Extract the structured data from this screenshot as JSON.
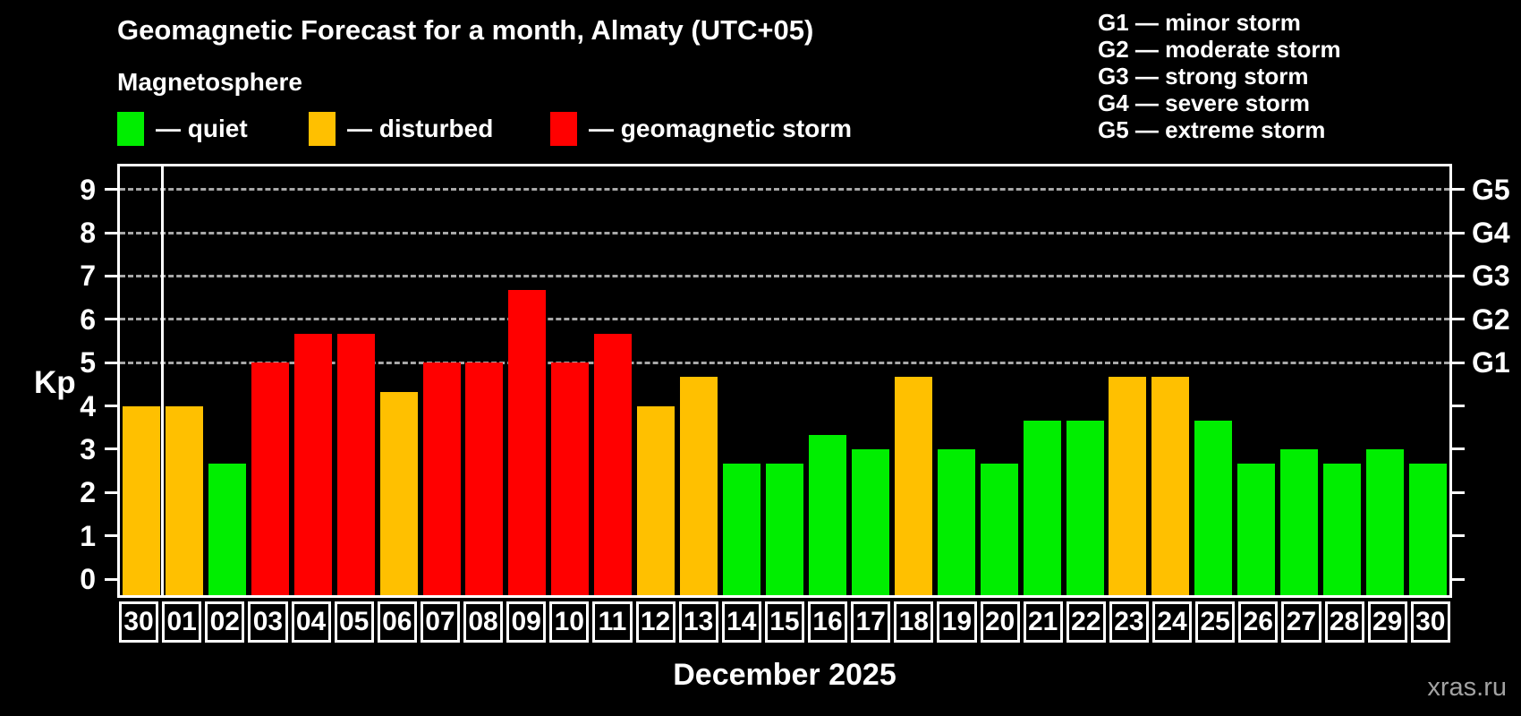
{
  "header": {
    "title": "Geomagnetic Forecast for a month, Almaty (UTC+05)",
    "subtitle": "Magnetosphere"
  },
  "legend": {
    "items": [
      {
        "key": "quiet",
        "label": "— quiet",
        "color": "#00ee00"
      },
      {
        "key": "disturbed",
        "label": "— disturbed",
        "color": "#ffc000"
      },
      {
        "key": "storm",
        "label": "— geomagnetic storm",
        "color": "#ff0000"
      }
    ]
  },
  "g_scale": {
    "legend": [
      "G1 — minor storm",
      "G2 — moderate storm",
      "G3 — strong storm",
      "G4 — severe storm",
      "G5 — extreme storm"
    ]
  },
  "footer": {
    "xlabel": "December 2025",
    "watermark": "xras.ru"
  },
  "chart_data": {
    "type": "bar",
    "title": "Geomagnetic Forecast for a month, Almaty (UTC+05)",
    "ylabel": "Kp",
    "xlabel": "December 2025",
    "ylim": [
      0,
      9
    ],
    "y_ticks": [
      0,
      1,
      2,
      3,
      4,
      5,
      6,
      7,
      8,
      9
    ],
    "grid": "horizontal dashed lines at Kp 5-9 (storm levels G1-G5)",
    "legend_position": "top-left",
    "right_axis": {
      "labels": [
        "G1",
        "G2",
        "G3",
        "G4",
        "G5"
      ],
      "values": [
        5,
        6,
        7,
        8,
        9
      ]
    },
    "separator_after_index": 0,
    "categories": [
      "30",
      "01",
      "02",
      "03",
      "04",
      "05",
      "06",
      "07",
      "08",
      "09",
      "10",
      "11",
      "12",
      "13",
      "14",
      "15",
      "16",
      "17",
      "18",
      "19",
      "20",
      "21",
      "22",
      "23",
      "24",
      "25",
      "26",
      "27",
      "28",
      "29",
      "30"
    ],
    "values": [
      4.0,
      4.0,
      2.67,
      5.0,
      5.67,
      5.67,
      4.33,
      5.0,
      5.0,
      6.67,
      5.0,
      5.67,
      4.0,
      4.67,
      2.67,
      2.67,
      3.33,
      3.0,
      4.67,
      3.0,
      2.67,
      3.67,
      3.67,
      4.67,
      4.67,
      3.67,
      2.67,
      3.0,
      2.67,
      3.0,
      2.67
    ],
    "statuses": [
      "disturbed",
      "disturbed",
      "quiet",
      "storm",
      "storm",
      "storm",
      "disturbed",
      "storm",
      "storm",
      "storm",
      "storm",
      "storm",
      "disturbed",
      "disturbed",
      "quiet",
      "quiet",
      "quiet",
      "quiet",
      "disturbed",
      "quiet",
      "quiet",
      "quiet",
      "quiet",
      "disturbed",
      "disturbed",
      "quiet",
      "quiet",
      "quiet",
      "quiet",
      "quiet",
      "quiet"
    ]
  }
}
